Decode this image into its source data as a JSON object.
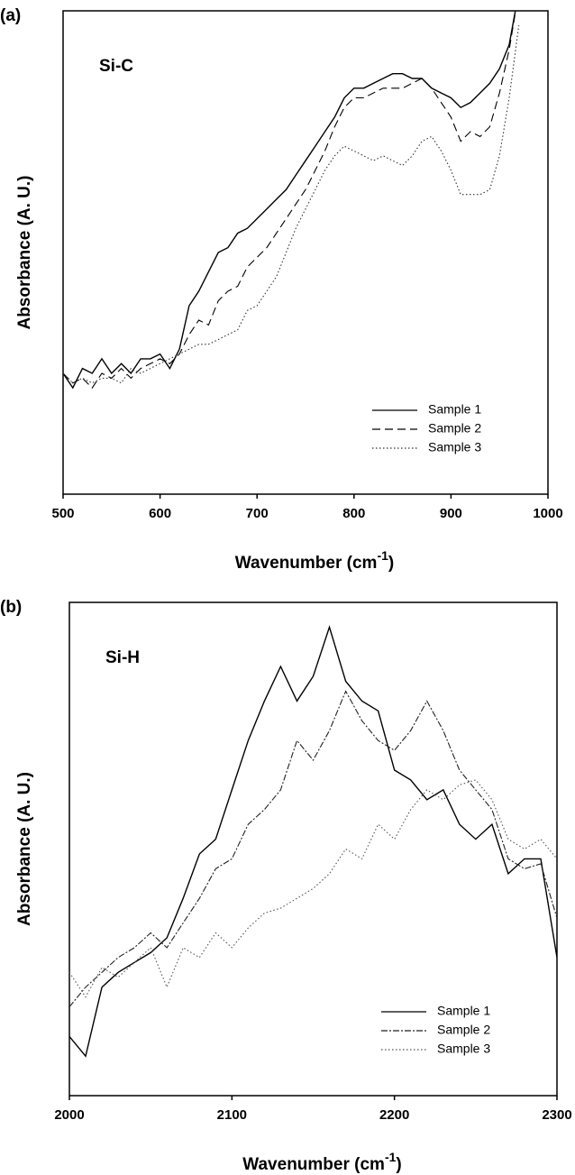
{
  "chart_data": [
    {
      "type": "line",
      "panel_label": "(a)",
      "annotation": "Si-C",
      "ylabel": "Absorbance (A. U.)",
      "xlabel": [
        "Wavenumber (cm",
        "-1",
        ")"
      ],
      "x": [
        500,
        510,
        520,
        530,
        540,
        550,
        560,
        570,
        580,
        590,
        600,
        610,
        620,
        630,
        640,
        650,
        660,
        670,
        680,
        690,
        700,
        710,
        720,
        730,
        740,
        750,
        760,
        770,
        780,
        790,
        800,
        810,
        820,
        830,
        840,
        850,
        860,
        870,
        880,
        890,
        900,
        910,
        920,
        930,
        940,
        950,
        960,
        970
      ],
      "xlim": [
        500,
        1000
      ],
      "xticks": [
        500,
        600,
        700,
        800,
        900,
        1000
      ],
      "ylim": [
        0,
        100
      ],
      "legend": "lower right",
      "series": [
        {
          "name": "Sample 1",
          "color": "#000000",
          "dash": "solid",
          "values": [
            25,
            22,
            26,
            25,
            28,
            25,
            27,
            25,
            28,
            28,
            29,
            26,
            30,
            39,
            42,
            46,
            50,
            51,
            54,
            55,
            57,
            59,
            61,
            63,
            66,
            69,
            72,
            75,
            78,
            82,
            84,
            84,
            85,
            86,
            87,
            87,
            86,
            86,
            84,
            83,
            82,
            80,
            81,
            83,
            85,
            88,
            93,
            104
          ]
        },
        {
          "name": "Sample 2",
          "color": "#000000",
          "dash": "dashed",
          "values": [
            25,
            23,
            24,
            22,
            25,
            24,
            26,
            24,
            26,
            27,
            28,
            27,
            29,
            33,
            36,
            35,
            40,
            42,
            43,
            47,
            49,
            51,
            54,
            57,
            60,
            63,
            67,
            71,
            76,
            80,
            82,
            82,
            83,
            84,
            84,
            84,
            85,
            86,
            84,
            81,
            78,
            73,
            75,
            74,
            76,
            83,
            92,
            104
          ]
        },
        {
          "name": "Sample 3",
          "color": "#333333",
          "dash": "dotted",
          "values": [
            25,
            23,
            24,
            23,
            24,
            24,
            23,
            26,
            25,
            26,
            27,
            28,
            29,
            30,
            31,
            31,
            32,
            33,
            34,
            38,
            39,
            42,
            45,
            50,
            55,
            59,
            63,
            67,
            70,
            72,
            71,
            70,
            69,
            70,
            69,
            68,
            70,
            73,
            74,
            71,
            67,
            62,
            62,
            62,
            63,
            70,
            82,
            97
          ]
        }
      ]
    },
    {
      "type": "line",
      "panel_label": "(b)",
      "annotation": "Si-H",
      "ylabel": "Absorbance (A. U.)",
      "xlabel": [
        "Wavenumber (cm",
        "-1",
        ")"
      ],
      "x": [
        2000,
        2010,
        2020,
        2030,
        2040,
        2050,
        2060,
        2070,
        2080,
        2090,
        2100,
        2110,
        2120,
        2130,
        2140,
        2150,
        2160,
        2170,
        2180,
        2190,
        2200,
        2210,
        2220,
        2230,
        2240,
        2250,
        2260,
        2270,
        2280,
        2290,
        2300
      ],
      "xlim": [
        2000,
        2300
      ],
      "xticks": [
        2000,
        2100,
        2200,
        2300
      ],
      "ylim": [
        0,
        100
      ],
      "legend": "lower right",
      "series": [
        {
          "name": "Sample 1",
          "color": "#000000",
          "dash": "solid",
          "values": [
            12,
            8,
            22,
            25,
            27,
            29,
            32,
            40,
            49,
            52,
            62,
            72,
            80,
            87,
            80,
            85,
            95,
            84,
            80,
            78,
            66,
            64,
            60,
            62,
            55,
            52,
            55,
            45,
            48,
            48,
            28
          ]
        },
        {
          "name": "Sample 2",
          "color": "#222222",
          "dash": "dashdot",
          "values": [
            18,
            22,
            25,
            28,
            30,
            33,
            30,
            35,
            40,
            46,
            48,
            55,
            58,
            62,
            72,
            68,
            74,
            82,
            76,
            72,
            70,
            74,
            80,
            74,
            66,
            62,
            58,
            48,
            46,
            47,
            36
          ]
        },
        {
          "name": "Sample 3",
          "color": "#555555",
          "dash": "dotted",
          "values": [
            25,
            20,
            26,
            24,
            27,
            30,
            22,
            30,
            28,
            33,
            30,
            34,
            37,
            38,
            40,
            42,
            45,
            50,
            48,
            55,
            52,
            58,
            62,
            60,
            63,
            64,
            60,
            52,
            50,
            52,
            48
          ]
        }
      ]
    }
  ]
}
